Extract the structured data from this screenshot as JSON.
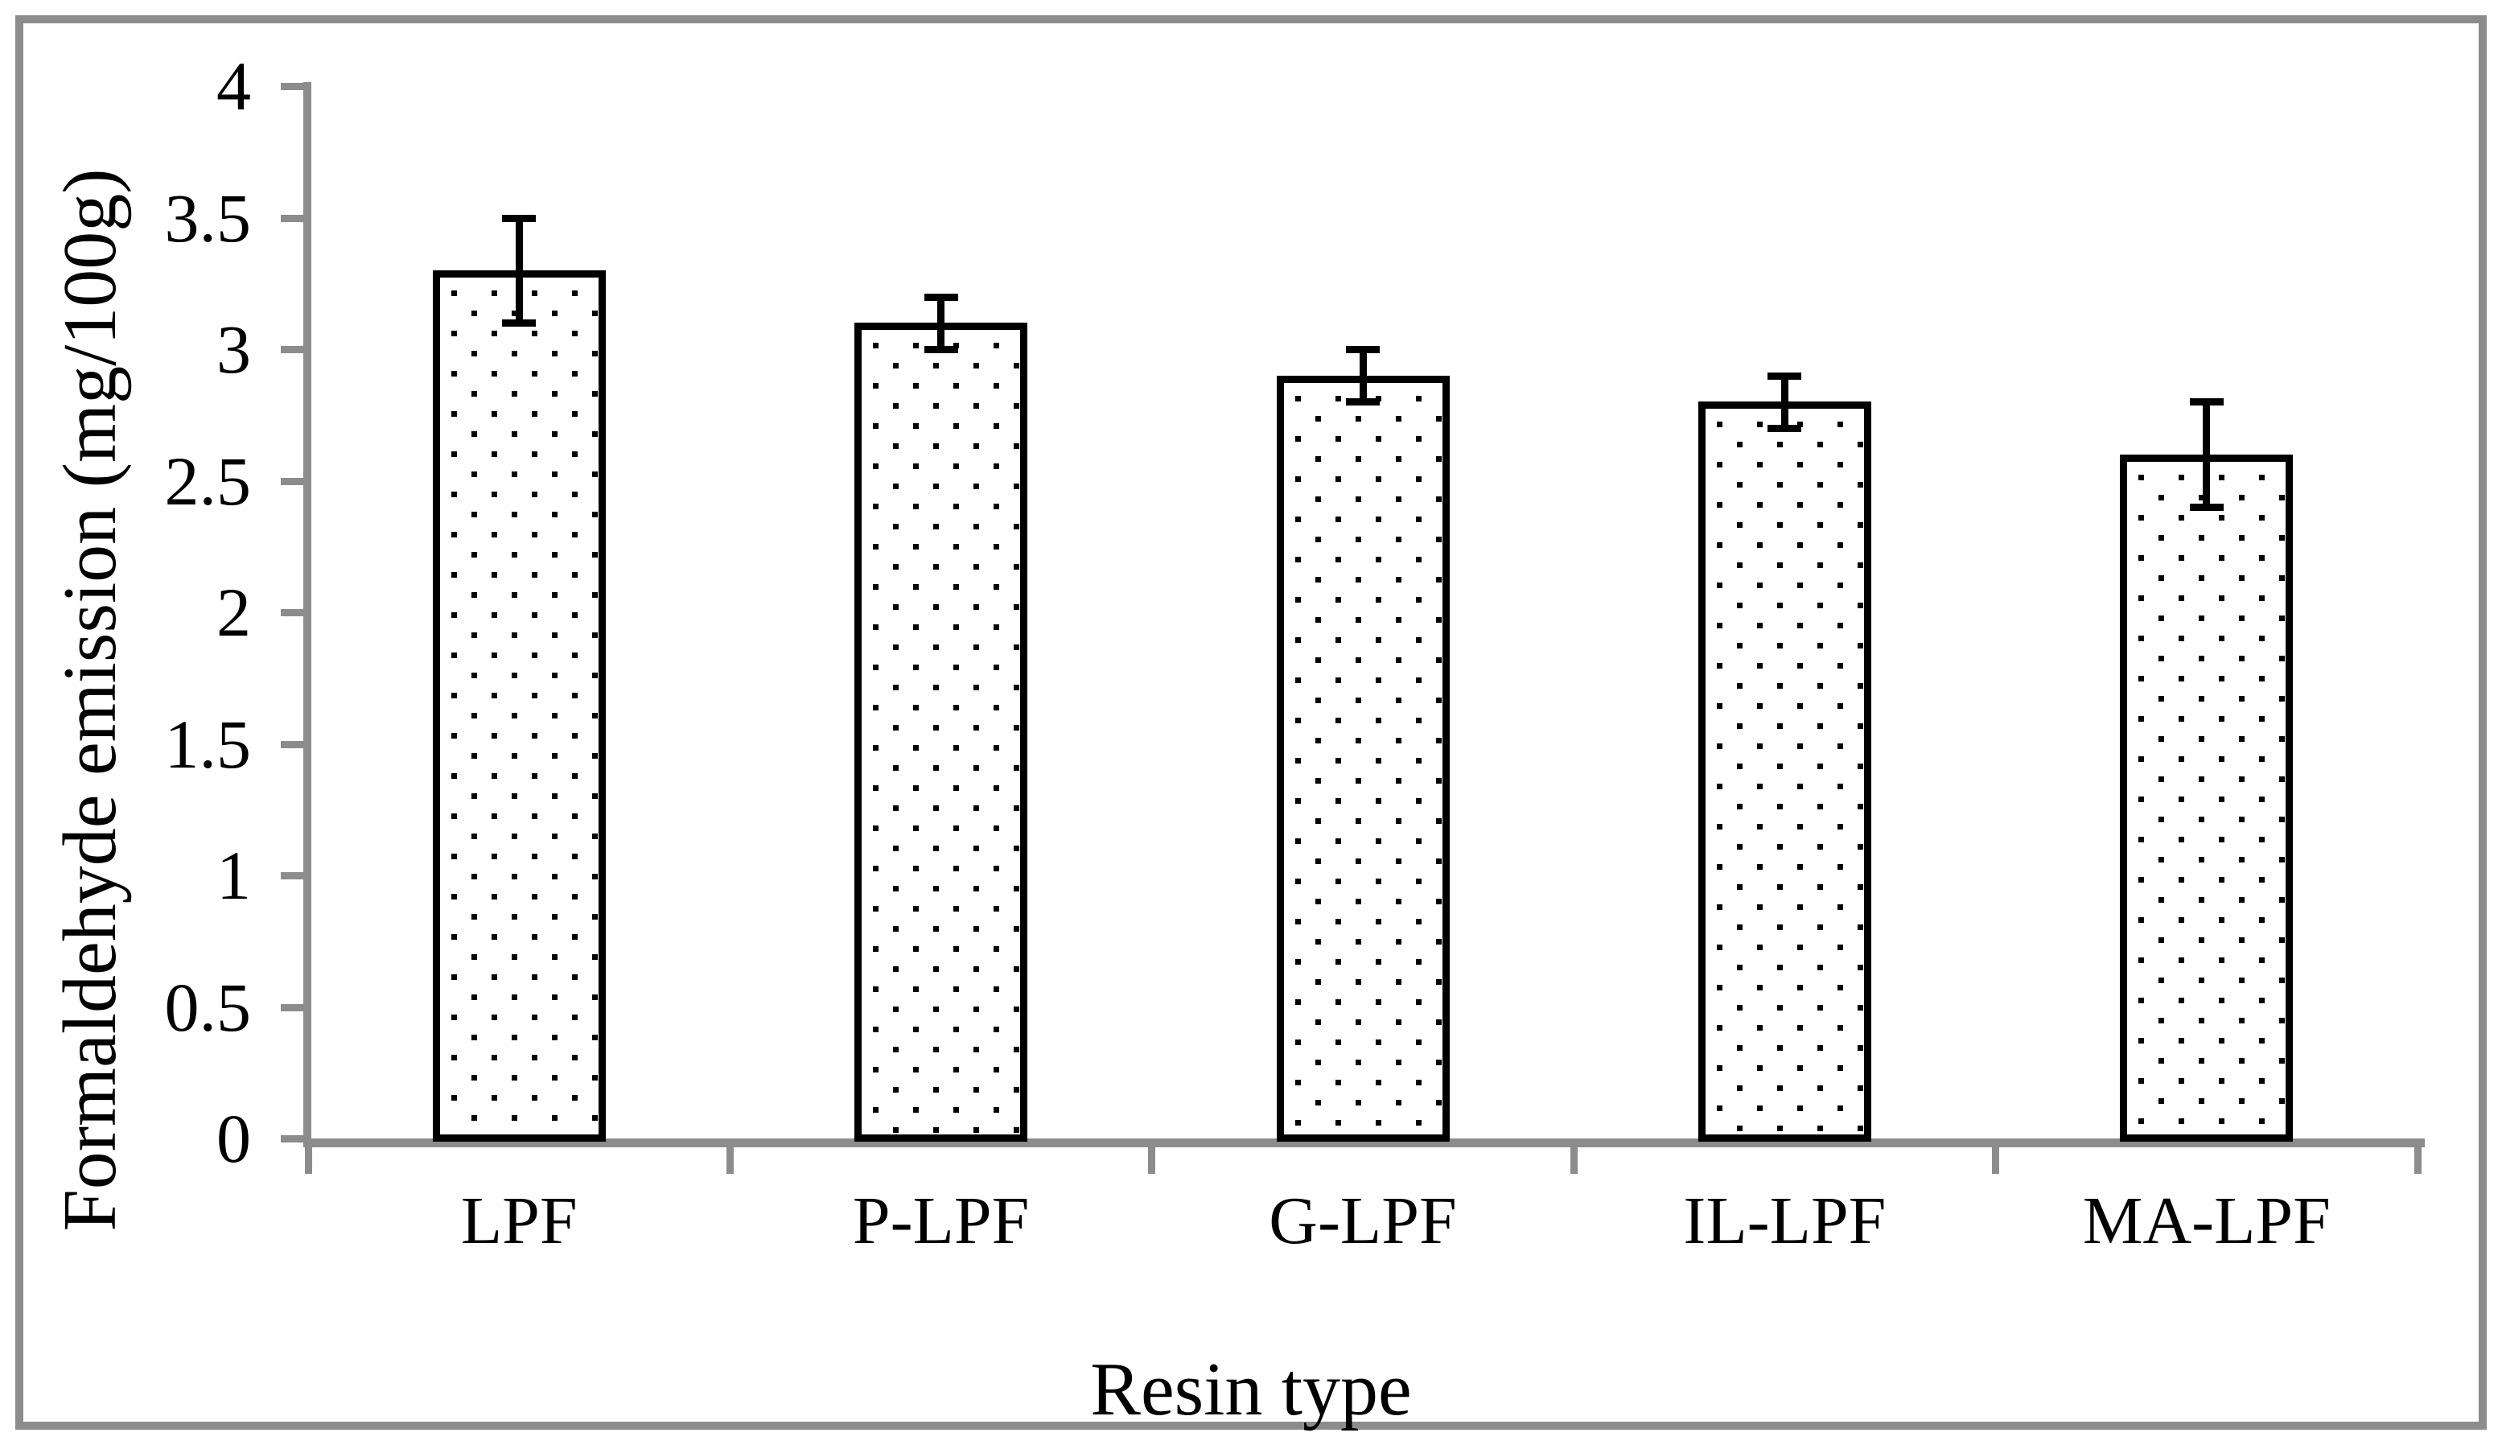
{
  "chart_data": {
    "type": "bar",
    "title": "",
    "xlabel": "Resin type",
    "ylabel": "Formaldehyde emission (mg/100g)",
    "categories": [
      "LPF",
      "P-LPF",
      "G-LPF",
      "IL-LPF",
      "MA-LPF"
    ],
    "values": [
      3.3,
      3.1,
      2.9,
      2.8,
      2.6
    ],
    "error_bars": [
      0.2,
      0.1,
      0.1,
      0.1,
      0.2
    ],
    "ylim": [
      0,
      4
    ],
    "ytick_step": 0.5,
    "ytick_labels": [
      "0",
      "0.5",
      "1",
      "1.5",
      "2",
      "2.5",
      "3",
      "3.5",
      "4"
    ],
    "grid": false,
    "legend": false,
    "bar_fill": "white with black square-dot pattern",
    "bar_border_color": "#000000",
    "error_bar_color": "#000000",
    "axis_color": "#8C8C8C",
    "frame_border_color": "#8C8C8C",
    "background_color": "#FFFFFF"
  }
}
